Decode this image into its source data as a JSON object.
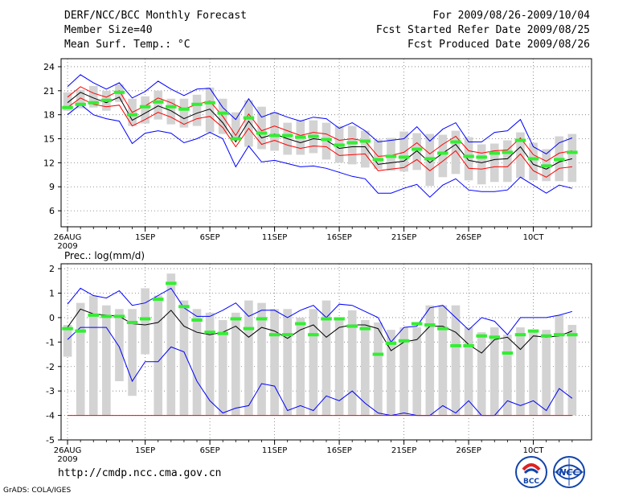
{
  "header": {
    "title": "DERF/NCC/BCC Monthly Forecast",
    "member_size": "Member Size=40",
    "variable": "Mean Surf. Temp.: °C",
    "period": "For 2009/08/26-2009/10/04",
    "fcst_started": "Fcst Started Refer Date 2009/08/25",
    "fcst_produced": "Fcst Produced Date 2009/08/26"
  },
  "footer": {
    "url": "http://cmdp.ncc.cma.gov.cn",
    "grads": "GrADS: COLA/IGES",
    "logo_left_text": "BCC",
    "logo_right_text": "NCC"
  },
  "colors": {
    "mean": "#000000",
    "envelope": "#0000ff",
    "spread": "#ff0000",
    "obs_bar": "#d3d3d3",
    "obs_mark": "#33ee33"
  },
  "chart_data": [
    {
      "type": "line",
      "panel": "temperature",
      "ylim": [
        4,
        25
      ],
      "yticks": [
        6,
        9,
        12,
        15,
        18,
        21,
        24
      ],
      "x_tick_labels": [
        "26AUG",
        "1SEP",
        "6SEP",
        "11SEP",
        "16SEP",
        "21SEP",
        "26SEP",
        "10CT"
      ],
      "x_tick_days": [
        0,
        6,
        11,
        16,
        21,
        26,
        31,
        36
      ],
      "x_sub_label": "2009",
      "xlim": [
        -0.5,
        40.5
      ],
      "series": [
        {
          "name": "mean",
          "values": [
            19.5,
            20.8,
            20.1,
            19.5,
            20.2,
            17.3,
            18.2,
            19.1,
            18.5,
            17.5,
            18.2,
            18.7,
            17.0,
            14.6,
            17.2,
            15.1,
            15.6,
            15.0,
            14.5,
            15.0,
            14.8,
            13.8,
            14.0,
            14.0,
            11.8,
            12.0,
            12.2,
            13.5,
            12.0,
            13.2,
            14.3,
            12.3,
            12.0,
            12.4,
            12.5,
            14.0,
            11.8,
            11.2,
            12.1,
            12.5
          ]
        },
        {
          "name": "max",
          "values": [
            21.5,
            23.0,
            22.0,
            21.2,
            22.0,
            20.1,
            20.9,
            22.2,
            21.2,
            20.4,
            21.2,
            21.3,
            18.9,
            17.4,
            20.0,
            17.7,
            18.3,
            17.7,
            17.2,
            17.7,
            17.5,
            16.3,
            17.0,
            16.0,
            14.6,
            14.8,
            15.0,
            16.5,
            14.7,
            16.2,
            17.0,
            14.6,
            14.6,
            15.8,
            16.0,
            17.4,
            14.0,
            13.1,
            14.5,
            15.1
          ]
        },
        {
          "name": "min",
          "values": [
            18.0,
            19.3,
            18.0,
            17.5,
            17.2,
            14.4,
            15.7,
            16.0,
            15.7,
            14.5,
            15.0,
            15.8,
            15.0,
            11.5,
            14.1,
            12.1,
            12.3,
            11.9,
            11.5,
            11.6,
            11.3,
            10.8,
            10.3,
            10.0,
            8.2,
            8.2,
            8.8,
            9.3,
            7.7,
            9.2,
            10.0,
            8.6,
            8.4,
            8.4,
            8.6,
            10.2,
            9.2,
            8.2,
            9.2,
            8.8
          ]
        },
        {
          "name": "upper",
          "values": [
            20.2,
            21.5,
            20.7,
            20.2,
            21.0,
            18.3,
            19.1,
            20.1,
            19.5,
            18.7,
            19.3,
            19.7,
            17.8,
            15.4,
            18.1,
            16.0,
            16.6,
            16.0,
            15.4,
            15.8,
            15.6,
            14.8,
            15.0,
            14.7,
            12.8,
            12.9,
            13.3,
            14.5,
            13.1,
            14.3,
            15.3,
            13.5,
            13.2,
            13.5,
            13.6,
            15.1,
            13.0,
            12.2,
            13.2,
            13.5
          ]
        },
        {
          "name": "lower",
          "values": [
            18.9,
            20.1,
            19.3,
            19.0,
            19.2,
            16.6,
            17.4,
            18.3,
            17.7,
            16.8,
            17.5,
            17.8,
            16.4,
            14.0,
            16.3,
            14.3,
            14.8,
            14.2,
            13.8,
            14.1,
            14.0,
            12.9,
            13.0,
            13.1,
            11.0,
            11.2,
            11.4,
            12.4,
            11.0,
            12.2,
            13.5,
            11.3,
            11.2,
            11.5,
            11.5,
            13.1,
            11.0,
            10.2,
            11.3,
            11.5
          ]
        }
      ],
      "obs_bars": [
        [
          18.5,
          20.8
        ],
        [
          18.8,
          21.1
        ],
        [
          18.9,
          21.6
        ],
        [
          18.5,
          21.0
        ],
        [
          19.6,
          21.8
        ],
        [
          16.6,
          20.0
        ],
        [
          16.9,
          20.3
        ],
        [
          17.4,
          21.0
        ],
        [
          16.8,
          20.0
        ],
        [
          16.4,
          20.0
        ],
        [
          16.6,
          20.5
        ],
        [
          15.8,
          21.4
        ],
        [
          15.6,
          20.0
        ],
        [
          14.8,
          18.3
        ],
        [
          14.0,
          19.8
        ],
        [
          13.7,
          19.0
        ],
        [
          13.5,
          18.3
        ],
        [
          13.0,
          17.0
        ],
        [
          13.0,
          17.3
        ],
        [
          13.2,
          17.3
        ],
        [
          12.4,
          17.0
        ],
        [
          12.0,
          16.6
        ],
        [
          11.8,
          16.6
        ],
        [
          11.4,
          16.0
        ],
        [
          11.2,
          14.9
        ],
        [
          11.0,
          15.1
        ],
        [
          10.9,
          15.9
        ],
        [
          11.1,
          15.7
        ],
        [
          9.1,
          15.6
        ],
        [
          10.2,
          15.5
        ],
        [
          10.6,
          16.0
        ],
        [
          9.8,
          15.2
        ],
        [
          9.3,
          14.3
        ],
        [
          9.6,
          14.4
        ],
        [
          9.6,
          14.8
        ],
        [
          10.1,
          15.8
        ],
        [
          9.8,
          14.5
        ],
        [
          9.7,
          13.7
        ],
        [
          9.7,
          15.3
        ],
        [
          9.6,
          15.6
        ]
      ],
      "obs_marks": [
        18.9,
        19.3,
        19.5,
        19.8,
        20.8,
        18.0,
        19.0,
        19.6,
        19.0,
        18.7,
        19.3,
        19.5,
        18.2,
        15.0,
        17.6,
        15.7,
        15.4,
        15.4,
        15.2,
        15.3,
        14.9,
        14.2,
        14.5,
        14.7,
        12.4,
        12.8,
        12.7,
        13.7,
        12.5,
        13.2,
        14.6,
        12.8,
        12.7,
        13.2,
        13.3,
        14.8,
        12.5,
        11.6,
        12.4,
        13.3
      ]
    },
    {
      "type": "line",
      "panel": "precipitation",
      "title": "Prec.: log(mm/d)",
      "ylim": [
        -5,
        2.2
      ],
      "yticks": [
        -5,
        -4,
        -3,
        -2,
        -1,
        0,
        1,
        2
      ],
      "x_tick_labels": [
        "26AUG",
        "1SEP",
        "6SEP",
        "11SEP",
        "16SEP",
        "21SEP",
        "26SEP",
        "10CT"
      ],
      "x_tick_days": [
        0,
        6,
        11,
        16,
        21,
        26,
        31,
        36
      ],
      "x_sub_label": "2009",
      "xlim": [
        -0.5,
        40.5
      ],
      "series": [
        {
          "name": "mean",
          "values": [
            -0.4,
            0.35,
            0.15,
            0.1,
            0.05,
            -0.25,
            -0.3,
            -0.2,
            0.3,
            -0.35,
            -0.6,
            -0.7,
            -0.6,
            -0.35,
            -0.8,
            -0.4,
            -0.55,
            -0.85,
            -0.5,
            -0.3,
            -0.8,
            -0.4,
            -0.3,
            -0.3,
            -0.45,
            -1.35,
            -1.0,
            -0.9,
            -0.35,
            -0.35,
            -0.6,
            -1.1,
            -1.45,
            -0.9,
            -0.8,
            -1.3,
            -0.75,
            -0.8,
            -0.75,
            -0.55
          ]
        },
        {
          "name": "max",
          "values": [
            0.55,
            1.2,
            0.9,
            0.8,
            1.1,
            0.5,
            0.6,
            0.9,
            1.2,
            0.4,
            0.05,
            0.05,
            0.3,
            0.6,
            0.05,
            0.3,
            0.3,
            0.0,
            0.3,
            0.5,
            0.0,
            0.55,
            0.5,
            0.25,
            0.0,
            -1.0,
            -0.4,
            -0.35,
            0.4,
            0.5,
            0.0,
            -0.5,
            0.0,
            -0.15,
            -0.7,
            0.0,
            0.0,
            0.0,
            0.1,
            0.25
          ]
        },
        {
          "name": "min",
          "values": [
            -0.9,
            -0.4,
            -0.4,
            -0.4,
            -1.2,
            -2.6,
            -1.8,
            -1.8,
            -1.2,
            -1.4,
            -2.6,
            -3.4,
            -3.9,
            -3.7,
            -3.6,
            -2.7,
            -2.8,
            -3.8,
            -3.6,
            -3.8,
            -3.2,
            -3.4,
            -3.0,
            -3.5,
            -3.9,
            -4.0,
            -3.9,
            -4.0,
            -4.0,
            -3.6,
            -3.9,
            -3.4,
            -4.0,
            -4.0,
            -3.4,
            -3.6,
            -3.4,
            -3.8,
            -2.9,
            -3.3
          ]
        },
        {
          "name": "floor",
          "values": [
            -4,
            -4,
            -4,
            -4,
            -4,
            -4,
            -4,
            -4,
            -4,
            -4,
            -4,
            -4,
            -4,
            -4,
            -4,
            -4,
            -4,
            -4,
            -4,
            -4,
            -4,
            -4,
            -4,
            -4,
            -4,
            -4,
            -4,
            -4,
            -4,
            -4,
            -4,
            -4,
            -4,
            -4,
            -4,
            -4,
            -4,
            -4,
            -4,
            -4
          ]
        }
      ],
      "obs_bars": [
        [
          -1.6,
          -0.3
        ],
        [
          -4,
          0.6
        ],
        [
          -4,
          0.9
        ],
        [
          -4,
          0.5
        ],
        [
          -2.6,
          0.35
        ],
        [
          -3.2,
          0.35
        ],
        [
          -1.5,
          1.2
        ],
        [
          -4,
          0.9
        ],
        [
          -4,
          1.8
        ],
        [
          -4,
          0.7
        ],
        [
          -4,
          0.35
        ],
        [
          -4,
          0.2
        ],
        [
          -4,
          -0.1
        ],
        [
          -4,
          0.2
        ],
        [
          -4,
          0.7
        ],
        [
          -4,
          0.6
        ],
        [
          -4,
          0.35
        ],
        [
          -4,
          0.35
        ],
        [
          -4,
          0.0
        ],
        [
          -4,
          0.35
        ],
        [
          -4,
          0.7
        ],
        [
          -4,
          0.0
        ],
        [
          -4,
          0.3
        ],
        [
          -4,
          -0.1
        ],
        [
          -4,
          -0.2
        ],
        [
          -4,
          -0.5
        ],
        [
          -4,
          -0.4
        ],
        [
          -4,
          -0.4
        ],
        [
          -4,
          0.5
        ],
        [
          -4,
          0.5
        ],
        [
          -4,
          0.5
        ],
        [
          -4,
          -0.4
        ],
        [
          -4,
          -0.6
        ],
        [
          -4,
          -0.4
        ],
        [
          -4,
          -0.7
        ],
        [
          -4,
          -0.4
        ],
        [
          -4,
          -0.6
        ],
        [
          -4,
          -0.5
        ],
        [
          -4,
          0.1
        ],
        [
          -4,
          -0.3
        ]
      ],
      "obs_marks": [
        -0.45,
        -0.55,
        0.1,
        0.05,
        0.05,
        -0.2,
        -0.05,
        0.75,
        1.4,
        0.45,
        -0.1,
        -0.6,
        -0.65,
        -0.05,
        -0.45,
        -0.05,
        -0.7,
        -0.7,
        -0.25,
        -0.7,
        -0.05,
        -0.05,
        -0.35,
        -0.45,
        -1.5,
        -1.05,
        -0.95,
        -0.25,
        -0.3,
        -0.45,
        -1.15,
        -1.15,
        -0.75,
        -0.8,
        -1.45,
        -0.7,
        -0.55,
        -0.75,
        -0.7,
        -0.7
      ]
    }
  ]
}
